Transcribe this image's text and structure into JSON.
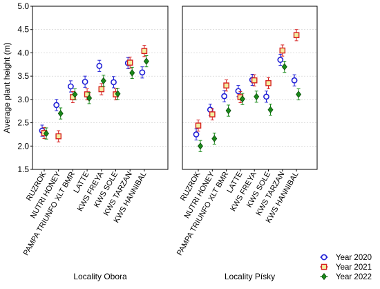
{
  "chart_data": {
    "type": "scatter",
    "ylabel": "Average plant height (m)",
    "ylim": [
      1.5,
      5.0
    ],
    "yticks": [
      "1.5",
      "2.0",
      "2.5",
      "3.0",
      "3.5",
      "4.0",
      "4.5",
      "5.0"
    ],
    "categories": [
      "RUZROK",
      "NUTRI HONEY",
      "PAMPA TRIUNFO XLT BMR",
      "LATTE",
      "KWS FREYA",
      "KWS SOLE",
      "KWS TARZAN",
      "KWS HANNIBAL"
    ],
    "legend": {
      "position": "bottom-right"
    },
    "grid": true,
    "panels": [
      {
        "label": "Locality Obora",
        "series": [
          {
            "name": "Year 2020",
            "color": "#1f1fd6",
            "marker": "circle",
            "values": [
              2.33,
              2.88,
              3.28,
              3.38,
              3.72,
              3.37,
              3.78,
              3.58
            ],
            "errors": [
              0.12,
              0.12,
              0.12,
              0.12,
              0.12,
              0.12,
              0.12,
              0.12
            ]
          },
          {
            "name": "Year 2021",
            "color": "#d62020",
            "marker": "square",
            "values": [
              2.28,
              2.21,
              3.05,
              3.11,
              3.22,
              3.11,
              3.79,
              4.04
            ],
            "errors": [
              0.12,
              0.12,
              0.12,
              0.12,
              0.12,
              0.12,
              0.12,
              0.12
            ]
          },
          {
            "name": "Year 2022",
            "color": "#1a8a1a",
            "marker": "diamond",
            "values": [
              2.27,
              2.7,
              3.11,
              3.03,
              3.4,
              3.12,
              3.57,
              3.82
            ],
            "errors": [
              0.12,
              0.12,
              0.12,
              0.12,
              0.12,
              0.12,
              0.12,
              0.12
            ]
          }
        ]
      },
      {
        "label": "Locality Písky",
        "series": [
          {
            "name": "Year 2020",
            "color": "#1f1fd6",
            "marker": "circle",
            "values": [
              2.25,
              2.78,
              3.07,
              3.18,
              3.42,
              3.06,
              3.85,
              3.41
            ],
            "errors": [
              0.12,
              0.12,
              0.12,
              0.12,
              0.12,
              0.12,
              0.12,
              0.12
            ]
          },
          {
            "name": "Year 2021",
            "color": "#d62020",
            "marker": "square",
            "values": [
              2.44,
              2.68,
              3.3,
              3.05,
              3.41,
              3.35,
              4.05,
              4.38
            ],
            "errors": [
              0.12,
              0.12,
              0.12,
              0.12,
              0.12,
              0.12,
              0.12,
              0.12
            ]
          },
          {
            "name": "Year 2022",
            "color": "#1a8a1a",
            "marker": "diamond",
            "values": [
              2.0,
              2.16,
              2.76,
              3.01,
              3.06,
              2.78,
              3.7,
              3.11
            ],
            "errors": [
              0.12,
              0.12,
              0.12,
              0.12,
              0.12,
              0.12,
              0.12,
              0.12
            ]
          }
        ]
      }
    ]
  }
}
